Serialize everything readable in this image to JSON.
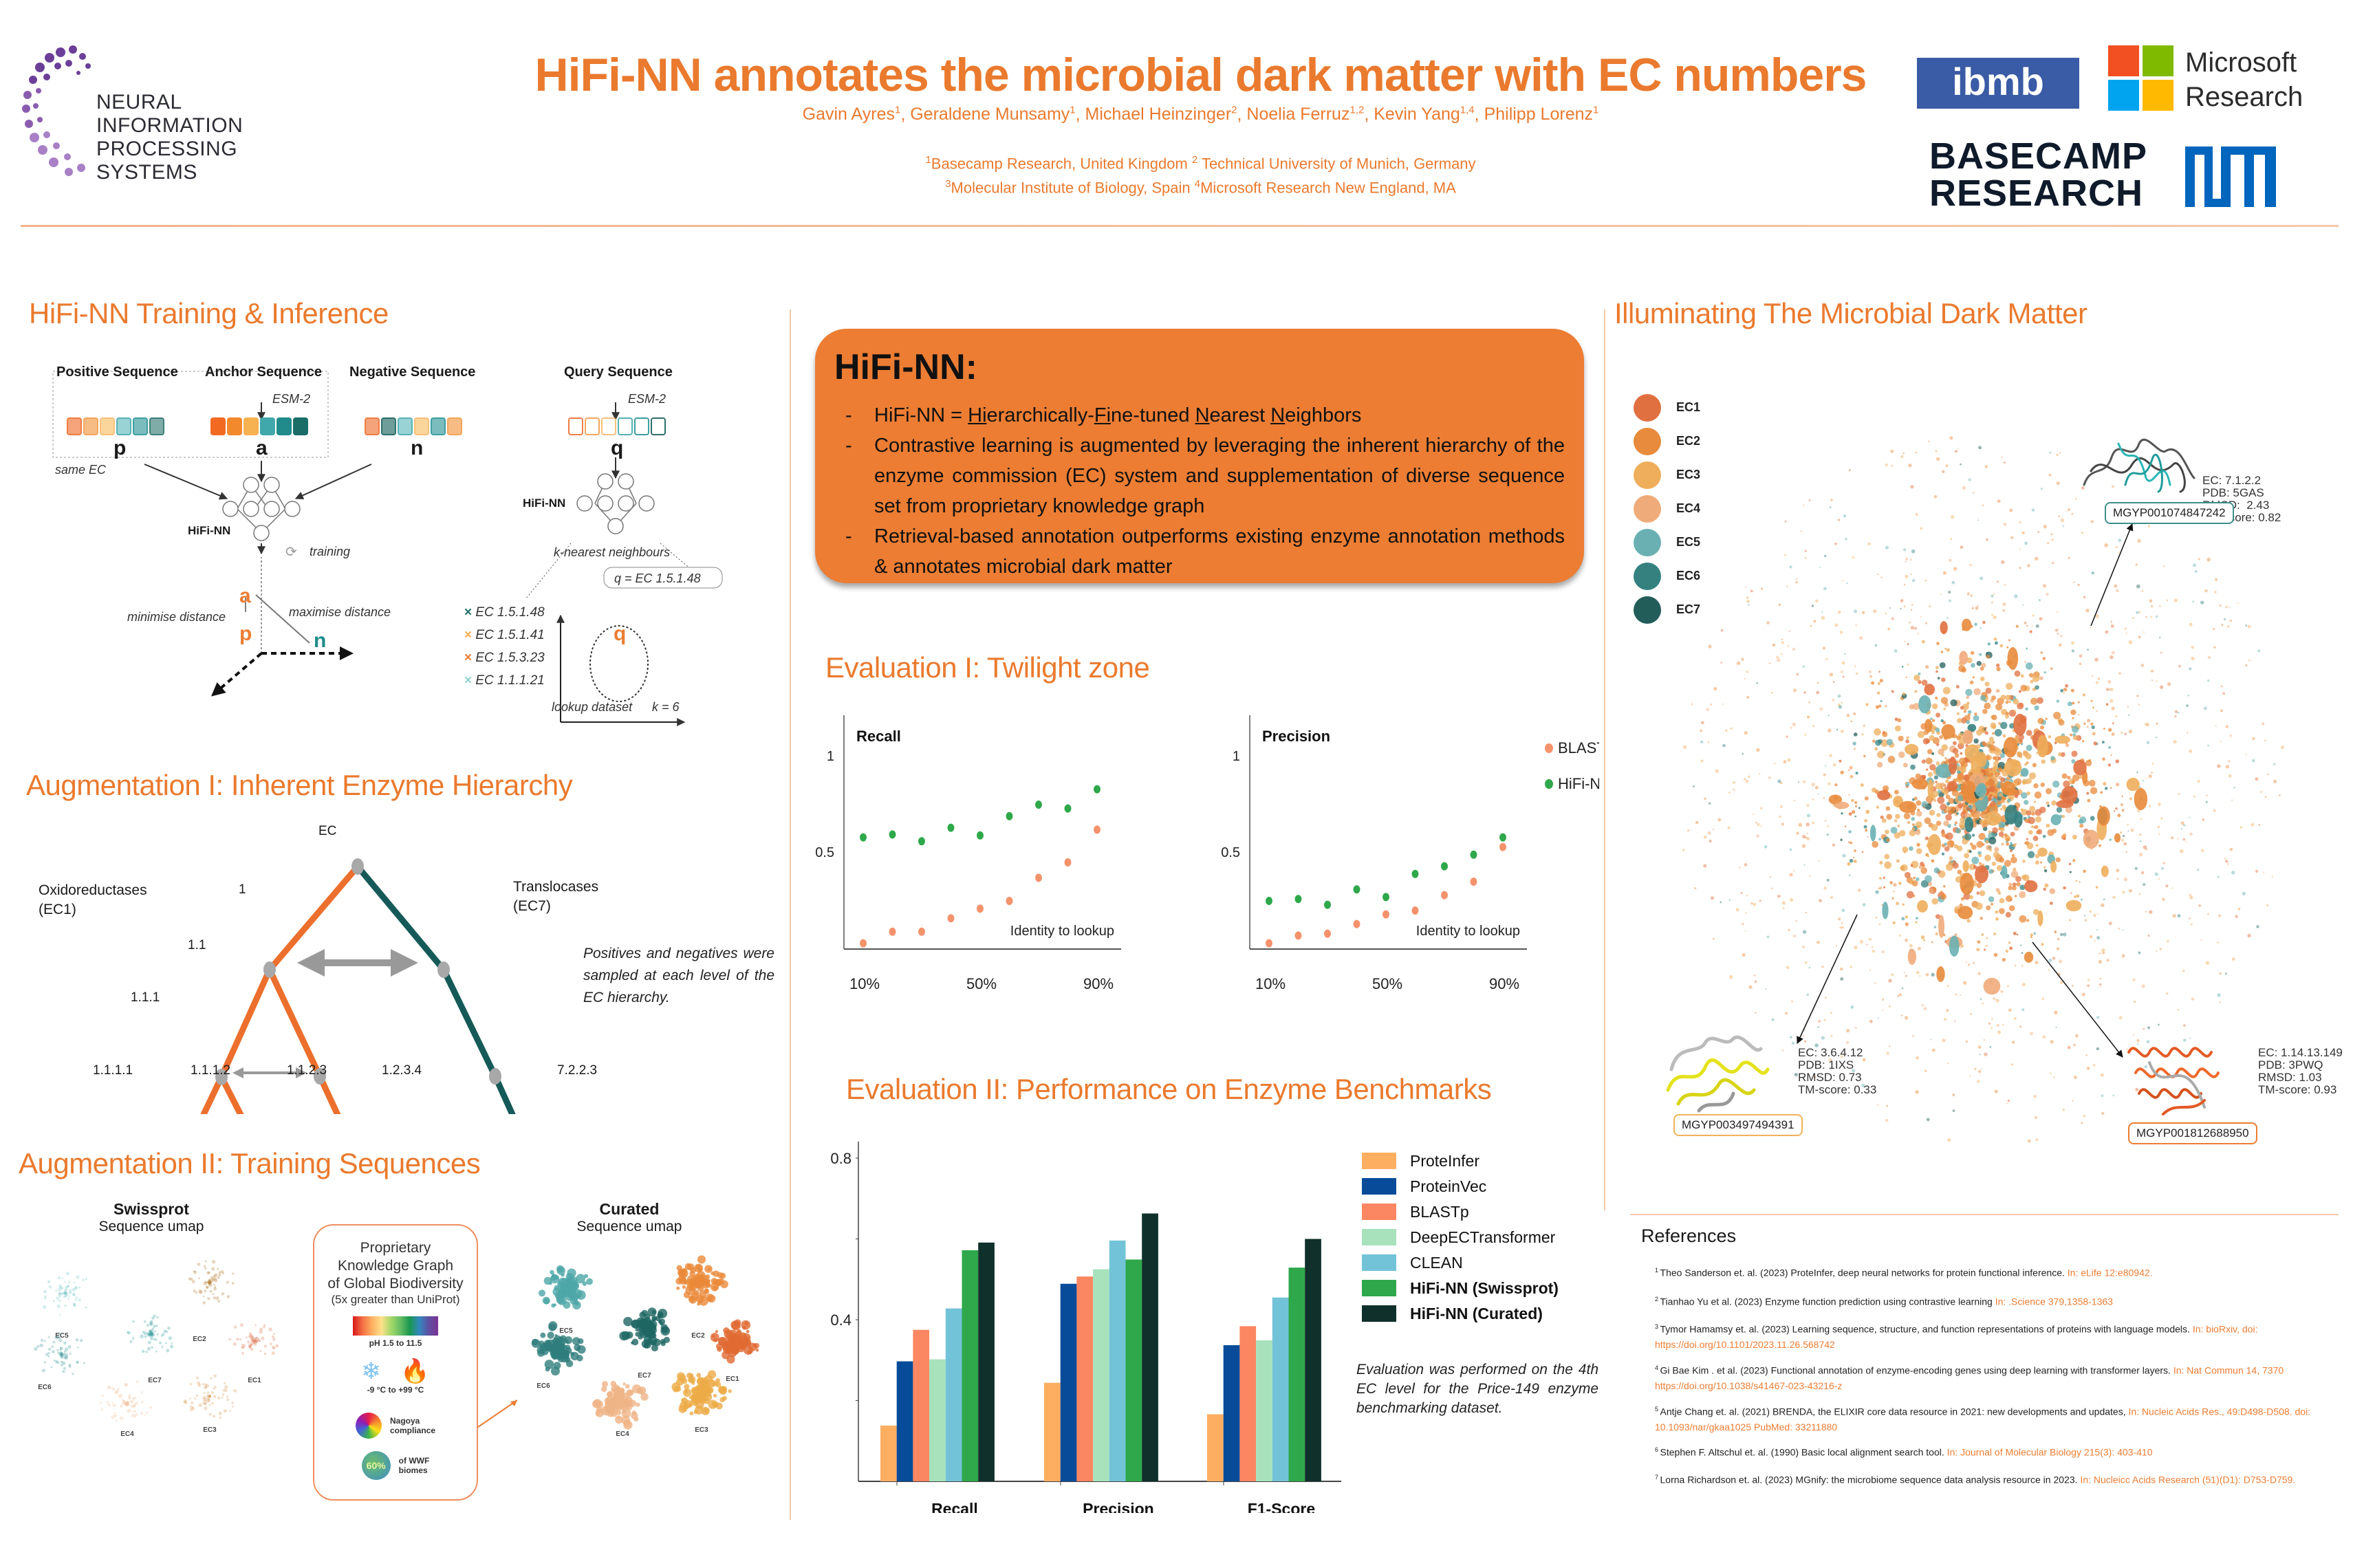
{
  "header": {
    "title": "HiFi-NN annotates the microbial dark matter with EC numbers",
    "authors": [
      {
        "name": "Gavin Ayres",
        "aff": "1"
      },
      {
        "name": "Geraldene Munsamy",
        "aff": "1"
      },
      {
        "name": "Michael Heinzinger",
        "aff": "2"
      },
      {
        "name": "Noelia Ferruz",
        "aff": "1,2"
      },
      {
        "name": "Kevin Yang",
        "aff": "1,4"
      },
      {
        "name": "Philipp Lorenz",
        "aff": "1"
      }
    ],
    "affiliations_line1": [
      {
        "num": "1",
        "text": "Basecamp Research, United Kingdom "
      },
      {
        "num": "2",
        "text": " Technical University of Munich, Germany"
      }
    ],
    "affiliations_line2": [
      {
        "num": "3",
        "text": "Molecular Institute of Biology, Spain "
      },
      {
        "num": "4",
        "text": "Microsoft Research New England, MA"
      }
    ]
  },
  "logos": {
    "neurips": [
      "NEURAL INFORMATION",
      "PROCESSING SYSTEMS"
    ],
    "ibmb": "ibmb",
    "microsoft": [
      "Microsoft",
      "Research"
    ],
    "basecamp": [
      "BASECAMP",
      "RESEARCH"
    ],
    "tum": "TUM"
  },
  "colors": {
    "accent": "#ea7a2e",
    "box_fill": "#ec7d33",
    "ec_teal": "#1f6f6b",
    "blastp": "#f4926c",
    "hifinn": "#2ea84a"
  },
  "training": {
    "title": "HiFi-NN Training & Inference",
    "positive_label": "Positive Sequence",
    "anchor_label": "Anchor Sequence",
    "negative_label": "Negative Sequence",
    "query_label": "Query Sequence",
    "esm_label": "ESM-2",
    "p": "p",
    "a": "a",
    "n": "n",
    "q": "q",
    "same_ec": "same EC",
    "model_label": "HiFi-NN",
    "training_label": "training",
    "minimise": "minimise distance",
    "maximise": "maximise distance",
    "knn_label": "k-nearest neighbours",
    "q_eq": "q = EC 1.5.1.48",
    "lookup_label": "lookup dataset",
    "k_label": "k = 6",
    "legend": [
      {
        "label": "EC 1.5.1.48",
        "color": "#1f6f6b"
      },
      {
        "label": "EC 1.5.1.41",
        "color": "#f5ad52"
      },
      {
        "label": "EC 1.5.3.23",
        "color": "#ec7d33"
      },
      {
        "label": "EC 1.1.1.21",
        "color": "#8fcfd0"
      }
    ]
  },
  "hierarchy": {
    "title": "Augmentation I: Inherent Enzyme Hierarchy",
    "root": "EC",
    "left_class": [
      "Oxidoreductases",
      "(EC1)"
    ],
    "right_class": [
      "Translocases",
      "(EC7)"
    ],
    "levels": [
      "1",
      "1.1",
      "1.1.1"
    ],
    "leaves": [
      "1.1.1.1",
      "1.1.1.2",
      "1.1.2.3",
      "1.2.3.4",
      "7.2.2.3"
    ],
    "note": "Positives and negatives were sampled at each level of the EC hierarchy."
  },
  "augmentation2": {
    "title": "Augmentation II: Training Sequences",
    "swissprot_title": "Swissprot",
    "swissprot_sub": "Sequence umap",
    "curated_title": "Curated",
    "curated_sub": "Sequence umap",
    "kg_title": [
      "Proprietary",
      "Knowledge Graph",
      "of Global Biodiversity"
    ],
    "kg_sub": "(5x greater than UniProt)",
    "ph_label": "pH 1.5 to 11.5",
    "temp_label": "-9 °C to +99 °C",
    "nagoya_label": [
      "Nagoya",
      "compliance"
    ],
    "wwf_pct": "60%",
    "wwf_label": [
      "of WWF",
      "biomes"
    ],
    "cluster_labels": [
      "EC1",
      "EC2",
      "EC3",
      "EC4",
      "EC5",
      "EC6",
      "EC7"
    ]
  },
  "hifi_box": {
    "title": "HiFi-NN:",
    "bullet1_prefix": "HiFi-NN = ",
    "bullet1_parts": [
      {
        "u": "Hi",
        "t": "erarchically-"
      },
      {
        "u": "Fi",
        "t": "ne-tuned "
      },
      {
        "u": "N",
        "t": "earest "
      },
      {
        "u": "N",
        "t": "eighbors"
      }
    ],
    "bullet2": "Contrastive learning is augmented by leveraging the inherent hierarchy of the enzyme commission (EC) system and supplementation of diverse sequence set from proprietary knowledge graph",
    "bullet3": "Retrieval-based annotation outperforms existing enzyme annotation methods & annotates microbial dark matter"
  },
  "eval1": {
    "title": "Evaluation I: Twilight zone",
    "xlabel": "Identity to lookup"
  },
  "eval2": {
    "title": "Evaluation II: Performance on Enzyme Benchmarks",
    "note": "Evaluation was performed on the 4th EC level for the Price-149 enzyme benchmarking dataset."
  },
  "chart_data": [
    {
      "type": "scatter",
      "title": "Recall",
      "xlabel": "Identity to lookup",
      "x": [
        10,
        20,
        30,
        40,
        50,
        60,
        70,
        80,
        90
      ],
      "xticks": [
        "10%",
        "50%",
        "90%"
      ],
      "yticks": [
        "0.5",
        "1"
      ],
      "ylim": [
        0,
        1.0
      ],
      "series": [
        {
          "name": "BLASTp",
          "color": "#f4926c",
          "values": [
            0.03,
            0.09,
            0.09,
            0.16,
            0.21,
            0.25,
            0.37,
            0.45,
            0.62
          ]
        },
        {
          "name": "HiFi-NN",
          "color": "#2ea84a",
          "values": [
            0.58,
            0.595,
            0.56,
            0.63,
            0.59,
            0.69,
            0.75,
            0.73,
            0.83
          ]
        }
      ]
    },
    {
      "type": "scatter",
      "title": "Precision",
      "xlabel": "Identity to lookup",
      "x": [
        10,
        20,
        30,
        40,
        50,
        60,
        70,
        80,
        90
      ],
      "xticks": [
        "10%",
        "50%",
        "90%"
      ],
      "yticks": [
        "0.5",
        "1"
      ],
      "ylim": [
        0,
        1.0
      ],
      "legend": "top-right",
      "series": [
        {
          "name": "BLASTp",
          "color": "#f4926c",
          "values": [
            0.03,
            0.07,
            0.08,
            0.13,
            0.18,
            0.2,
            0.28,
            0.35,
            0.53
          ]
        },
        {
          "name": "HiFi-NN",
          "color": "#2ea84a",
          "values": [
            0.25,
            0.26,
            0.23,
            0.31,
            0.27,
            0.39,
            0.43,
            0.49,
            0.58
          ]
        }
      ]
    },
    {
      "type": "bar",
      "title": "Performance on Enzyme Benchmarks",
      "categories": [
        "Recall",
        "Precision",
        "F1-Score"
      ],
      "yticks": [
        "0.4",
        "0.8"
      ],
      "ylim": [
        0,
        0.8
      ],
      "legend": "right",
      "series": [
        {
          "name": "ProteInfer",
          "color": "#fdae61",
          "bold": false,
          "values": [
            0.138,
            0.244,
            0.166
          ]
        },
        {
          "name": "ProteinVec",
          "color": "#084c99",
          "bold": false,
          "values": [
            0.297,
            0.489,
            0.337
          ]
        },
        {
          "name": "BLASTp",
          "color": "#fb8662",
          "bold": false,
          "values": [
            0.375,
            0.507,
            0.384
          ]
        },
        {
          "name": "DeepECTransformer",
          "color": "#a7e2bd",
          "bold": false,
          "values": [
            0.302,
            0.525,
            0.349
          ]
        },
        {
          "name": "CLEAN",
          "color": "#73c3d8",
          "bold": false,
          "values": [
            0.428,
            0.596,
            0.455
          ]
        },
        {
          "name": "HiFi-NN (Swissprot)",
          "color": "#2ea84a",
          "bold": true,
          "values": [
            0.572,
            0.549,
            0.529
          ]
        },
        {
          "name": "HiFi-NN (Curated)",
          "color": "#10302b",
          "bold": true,
          "values": [
            0.591,
            0.663,
            0.6
          ]
        }
      ]
    }
  ],
  "dark_matter": {
    "title": "Illuminating The Microbial Dark Matter",
    "legend": [
      {
        "label": "EC1",
        "color": "#e07040"
      },
      {
        "label": "EC2",
        "color": "#e88b3c"
      },
      {
        "label": "EC3",
        "color": "#eeae5c"
      },
      {
        "label": "EC4",
        "color": "#efab7a"
      },
      {
        "label": "EC5",
        "color": "#6ab0b2"
      },
      {
        "label": "EC6",
        "color": "#348180"
      },
      {
        "label": "EC7",
        "color": "#225d5a"
      }
    ],
    "structures": [
      {
        "id": "MGYP001074847242",
        "info": "EC: 7.1.2.2\nPDB: 5GAS\nRMSD:  2.43\nTM-score: 0.82",
        "border": "#3f8f8a"
      },
      {
        "id": "MGYP003497494391",
        "info": "EC: 3.6.4.12\nPDB: 1IXS\nRMSD: 0.73\nTM-score: 0.33",
        "border": "#f2b35a"
      },
      {
        "id": "MGYP001812688950",
        "info": "EC: 1.14.13.149\nPDB: 3PWQ\nRMSD: 1.03\nTM-score: 0.93",
        "border": "#ec7d33"
      }
    ]
  },
  "references": {
    "title": "References",
    "items": [
      {
        "n": "1",
        "text": "Theo Sanderson et. al. (2023) ProteInfer, deep neural networks for protein functional inference. ",
        "src": "In: eLife 12:e80942."
      },
      {
        "n": "2",
        "text": "Tianhao Yu et al. (2023) Enzyme function prediction using contrastive learning ",
        "src": "In: .Science 379,1358-1363"
      },
      {
        "n": "3",
        "text": "Tymor Hamamsy et. al. (2023) Learning sequence, structure, and function representations of proteins with language models. ",
        "src": "In: bioRxiv, doi: https://doi.org/10.1101/2023.11.26.568742"
      },
      {
        "n": "4",
        "text": "Gi Bae Kim . et al. (2023) Functional annotation of enzyme-encoding genes using deep learning with transformer layers. ",
        "src": "In: Nat Commun 14, 7370 https://doi.org/10.1038/s41467-023-43216-z"
      },
      {
        "n": "5",
        "text": "Antje Chang et. al. (2021) BRENDA, the ELIXIR core data resource in 2021: new developments and updates, ",
        "src": "In: Nucleic Acids Res., 49:D498-D508. doi: 10.1093/nar/gkaa1025  PubMed: 33211880"
      },
      {
        "n": "6",
        "text": "Stephen F. Altschul et. al. (1990) Basic local alignment search tool. ",
        "src": "In: Journal of Molecular Biology  215(3): 403-410"
      },
      {
        "n": "7",
        "text": "Lorna Richardson et. al.  (2023) MGnify: the microbiome sequence data analysis resource in 2023. ",
        "src": "In:  Nucleicc Acids Research  (51)(D1): D753-D759."
      }
    ]
  }
}
